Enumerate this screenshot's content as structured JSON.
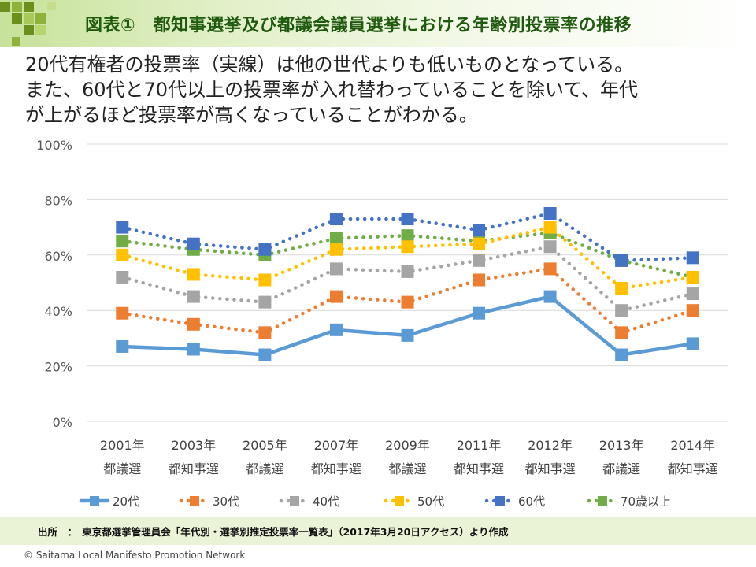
{
  "header": {
    "title": "図表①　都知事選挙及び都議会議員選挙における年齢別投票率の推移"
  },
  "description": {
    "lines": [
      "20代有権者の投票率（実線）は他の世代よりも低いものとなっている。",
      "また、60代と70代以上の投票率が入れ替わっていることを除いて、年代",
      "が上がるほど投票率が高くなっていることがわかる。"
    ]
  },
  "chart_data": {
    "type": "line",
    "title": "",
    "xlabel": "",
    "ylabel": "",
    "ylim": [
      0,
      100
    ],
    "yticks": [
      "0%",
      "20%",
      "40%",
      "60%",
      "80%",
      "100%"
    ],
    "grid": true,
    "legend_position": "bottom",
    "categories": [
      [
        "2001年",
        "都議選"
      ],
      [
        "2003年",
        "都知事選"
      ],
      [
        "2005年",
        "都議選"
      ],
      [
        "2007年",
        "都知事選"
      ],
      [
        "2009年",
        "都議選"
      ],
      [
        "2011年",
        "都知事選"
      ],
      [
        "2012年",
        "都知事選"
      ],
      [
        "2013年",
        "都議選"
      ],
      [
        "2014年",
        "都知事選"
      ]
    ],
    "series": [
      {
        "name": "20代",
        "color": "#5b9bd5",
        "style": "solid",
        "values": [
          27,
          26,
          24,
          33,
          31,
          39,
          45,
          24,
          28
        ]
      },
      {
        "name": "30代",
        "color": "#ed7d31",
        "style": "dotted",
        "values": [
          39,
          35,
          32,
          45,
          43,
          51,
          55,
          32,
          40
        ]
      },
      {
        "name": "40代",
        "color": "#a5a5a5",
        "style": "dotted",
        "values": [
          52,
          45,
          43,
          55,
          54,
          58,
          63,
          40,
          46
        ]
      },
      {
        "name": "50代",
        "color": "#ffc000",
        "style": "dotted",
        "values": [
          60,
          53,
          51,
          62,
          63,
          64,
          70,
          48,
          52
        ]
      },
      {
        "name": "60代",
        "color": "#4472c4",
        "style": "dotted",
        "values": [
          70,
          64,
          62,
          73,
          73,
          69,
          75,
          58,
          59
        ]
      },
      {
        "name": "70歳以上",
        "color": "#70ad47",
        "style": "dotted",
        "values": [
          65,
          62,
          60,
          66,
          67,
          65,
          68,
          58,
          52
        ]
      }
    ]
  },
  "source": {
    "text": "出所　：　東京都選挙管理員会「年代別・選挙別推定投票率一覧表」（2017年3月20日アクセス）より作成"
  },
  "footer": {
    "copyright": "© Saitama Local Manifesto Promotion Network"
  }
}
